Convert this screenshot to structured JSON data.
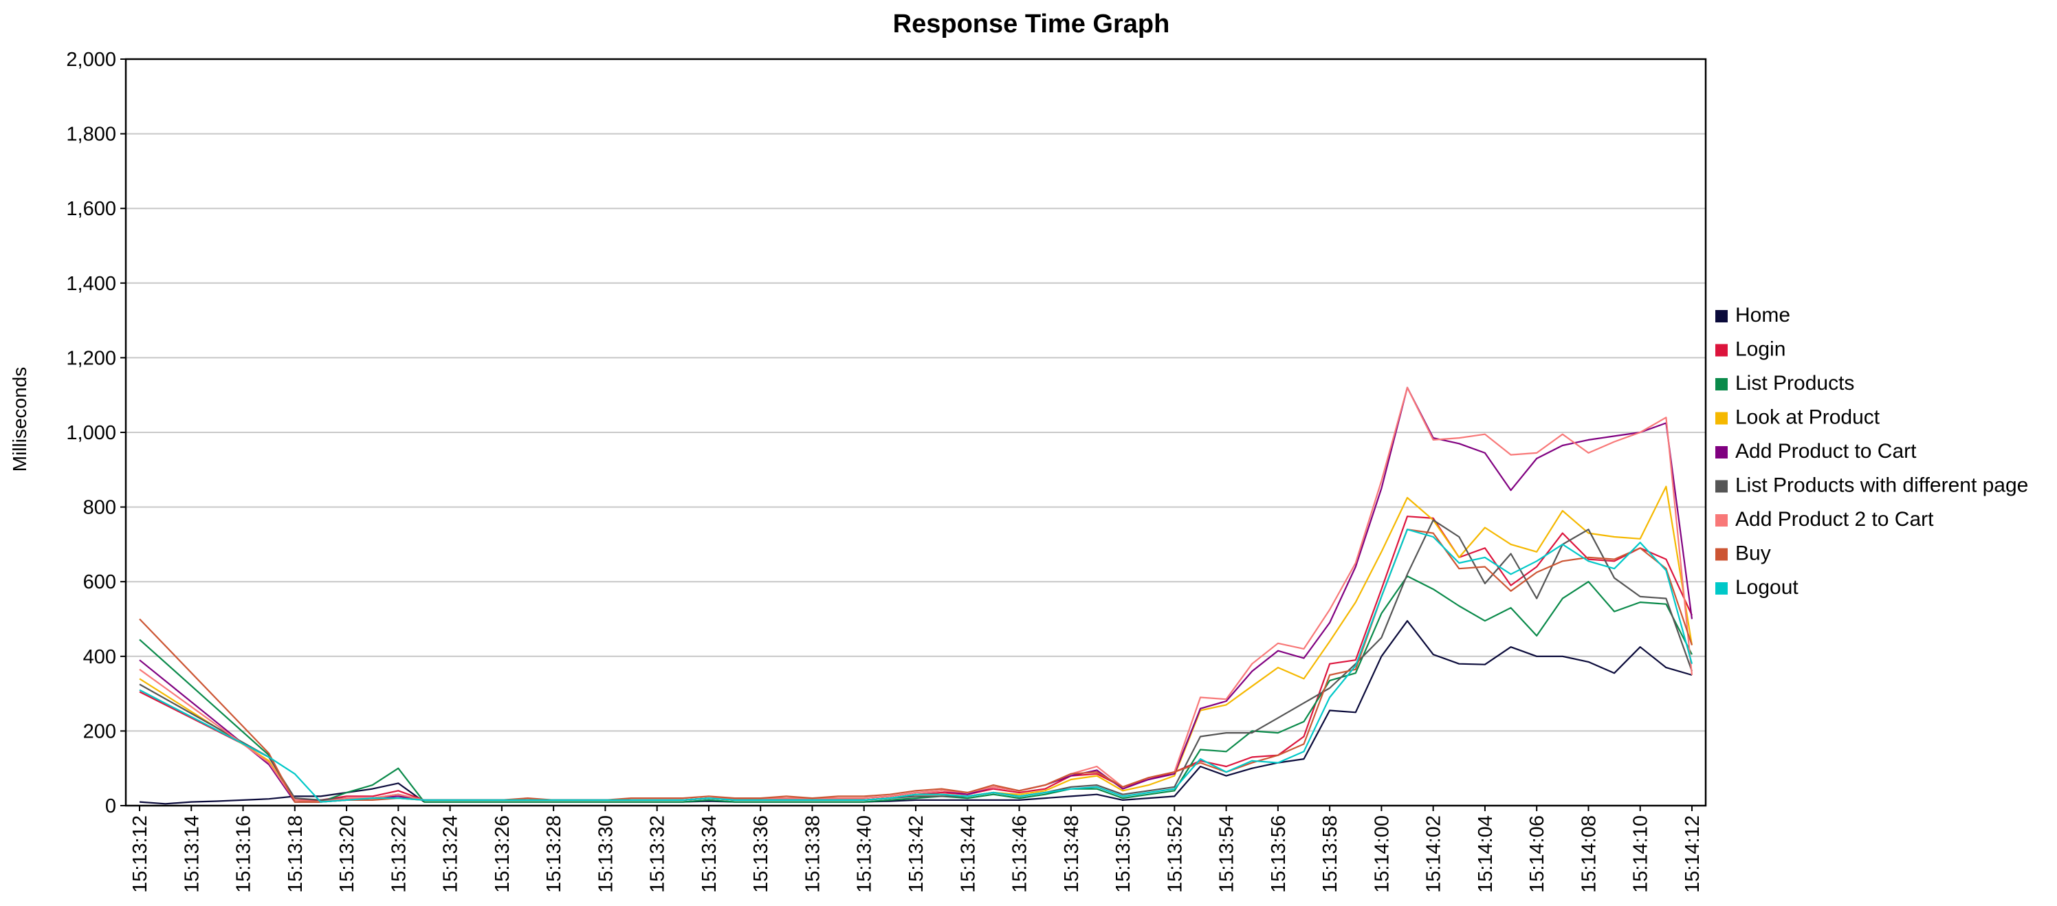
{
  "chart_data": {
    "type": "line",
    "title": "Response Time Graph",
    "xlabel": "",
    "ylabel": "Milliseconds",
    "ylim": [
      0,
      2000
    ],
    "ytick_labels": [
      "0",
      "200",
      "400",
      "600",
      "800",
      "1,000",
      "1,200",
      "1,400",
      "1,600",
      "1,800",
      "2,000"
    ],
    "ytick_values": [
      0,
      200,
      400,
      600,
      800,
      1000,
      1200,
      1400,
      1600,
      1800,
      2000
    ],
    "grid": true,
    "legend_position": "right",
    "x": [
      "15:13:12",
      "15:13:13",
      "15:13:14",
      "15:13:15",
      "15:13:16",
      "15:13:17",
      "15:13:18",
      "15:13:19",
      "15:13:20",
      "15:13:21",
      "15:13:22",
      "15:13:23",
      "15:13:24",
      "15:13:25",
      "15:13:26",
      "15:13:27",
      "15:13:28",
      "15:13:29",
      "15:13:30",
      "15:13:31",
      "15:13:32",
      "15:13:33",
      "15:13:34",
      "15:13:35",
      "15:13:36",
      "15:13:37",
      "15:13:38",
      "15:13:39",
      "15:13:40",
      "15:13:41",
      "15:13:42",
      "15:13:43",
      "15:13:44",
      "15:13:45",
      "15:13:46",
      "15:13:47",
      "15:13:48",
      "15:13:49",
      "15:13:50",
      "15:13:51",
      "15:13:52",
      "15:13:53",
      "15:13:54",
      "15:13:55",
      "15:13:56",
      "15:13:57",
      "15:13:58",
      "15:13:59",
      "15:14:00",
      "15:14:01",
      "15:14:02",
      "15:14:03",
      "15:14:04",
      "15:14:05",
      "15:14:06",
      "15:14:07",
      "15:14:08",
      "15:14:09",
      "15:14:10",
      "15:14:11",
      "15:14:12"
    ],
    "xtick_labels": [
      "15:13:12",
      "15:13:14",
      "15:13:16",
      "15:13:18",
      "15:13:20",
      "15:13:22",
      "15:13:24",
      "15:13:26",
      "15:13:28",
      "15:13:30",
      "15:13:32",
      "15:13:34",
      "15:13:36",
      "15:13:38",
      "15:13:40",
      "15:13:42",
      "15:13:44",
      "15:13:46",
      "15:13:48",
      "15:13:50",
      "15:13:52",
      "15:13:54",
      "15:13:56",
      "15:13:58",
      "15:14:00",
      "15:14:02",
      "15:14:04",
      "15:14:06",
      "15:14:08",
      "15:14:10",
      "15:14:12"
    ],
    "series": [
      {
        "name": "Home",
        "color": "#0a0a3a",
        "values": [
          10,
          5,
          10,
          12,
          15,
          18,
          25,
          25,
          35,
          45,
          60,
          10,
          10,
          10,
          10,
          10,
          10,
          10,
          10,
          10,
          10,
          10,
          12,
          10,
          10,
          10,
          10,
          10,
          10,
          12,
          15,
          15,
          15,
          15,
          15,
          20,
          25,
          30,
          15,
          20,
          25,
          105,
          80,
          100,
          115,
          125,
          255,
          250,
          400,
          495,
          405,
          380,
          378,
          425,
          400,
          400,
          385,
          355,
          425,
          370,
          350
        ]
      },
      {
        "name": "Login",
        "color": "#dc143c",
        "values": [
          305,
          null,
          null,
          null,
          null,
          130,
          15,
          15,
          25,
          25,
          40,
          15,
          15,
          15,
          15,
          15,
          15,
          15,
          15,
          15,
          15,
          15,
          20,
          15,
          15,
          15,
          15,
          15,
          15,
          20,
          30,
          35,
          30,
          45,
          35,
          45,
          80,
          85,
          50,
          70,
          90,
          120,
          105,
          130,
          135,
          185,
          380,
          390,
          580,
          775,
          770,
          665,
          690,
          590,
          640,
          730,
          660,
          655,
          690,
          660,
          510
        ]
      },
      {
        "name": "List Products",
        "color": "#0a8a4a",
        "values": [
          445,
          null,
          null,
          null,
          null,
          135,
          10,
          10,
          35,
          55,
          100,
          10,
          10,
          10,
          10,
          10,
          10,
          10,
          10,
          10,
          10,
          10,
          15,
          10,
          10,
          10,
          10,
          10,
          10,
          15,
          20,
          25,
          20,
          30,
          20,
          30,
          45,
          45,
          20,
          30,
          40,
          150,
          145,
          200,
          195,
          225,
          335,
          355,
          515,
          615,
          580,
          535,
          495,
          530,
          455,
          555,
          600,
          520,
          545,
          540,
          405
        ]
      },
      {
        "name": "Look at Product",
        "color": "#f5b800",
        "values": [
          340,
          null,
          null,
          null,
          null,
          120,
          10,
          10,
          15,
          20,
          20,
          15,
          15,
          15,
          15,
          15,
          15,
          15,
          15,
          15,
          15,
          15,
          20,
          15,
          15,
          15,
          15,
          15,
          15,
          20,
          30,
          30,
          25,
          35,
          30,
          40,
          70,
          80,
          40,
          55,
          80,
          255,
          270,
          320,
          370,
          340,
          440,
          545,
          680,
          825,
          765,
          665,
          745,
          700,
          680,
          790,
          730,
          720,
          715,
          855,
          430
        ]
      },
      {
        "name": "Add Product to Cart",
        "color": "#800080",
        "values": [
          390,
          null,
          null,
          null,
          null,
          110,
          10,
          10,
          15,
          20,
          25,
          15,
          15,
          15,
          15,
          15,
          15,
          15,
          15,
          15,
          15,
          15,
          20,
          20,
          20,
          20,
          20,
          20,
          20,
          25,
          35,
          40,
          30,
          50,
          40,
          55,
          80,
          95,
          45,
          70,
          85,
          260,
          280,
          360,
          415,
          395,
          490,
          640,
          850,
          1120,
          985,
          970,
          945,
          845,
          930,
          965,
          980,
          990,
          1000,
          1025,
          500
        ]
      },
      {
        "name": "List Products with different page",
        "color": "#555555",
        "values": [
          325,
          null,
          null,
          null,
          null,
          130,
          20,
          15,
          20,
          20,
          30,
          15,
          15,
          15,
          15,
          15,
          15,
          15,
          15,
          15,
          15,
          15,
          20,
          15,
          15,
          15,
          15,
          15,
          15,
          20,
          25,
          25,
          25,
          35,
          25,
          35,
          50,
          55,
          30,
          40,
          50,
          185,
          195,
          195,
          235,
          275,
          315,
          380,
          450,
          620,
          765,
          720,
          595,
          675,
          555,
          700,
          740,
          610,
          560,
          555,
          360
        ]
      },
      {
        "name": "Add Product 2 to Cart",
        "color": "#f87878",
        "values": [
          365,
          null,
          null,
          null,
          null,
          115,
          15,
          10,
          20,
          20,
          30,
          15,
          15,
          15,
          15,
          15,
          15,
          15,
          15,
          15,
          15,
          15,
          20,
          20,
          20,
          20,
          20,
          20,
          20,
          25,
          35,
          40,
          35,
          50,
          40,
          55,
          85,
          105,
          50,
          75,
          90,
          290,
          285,
          380,
          435,
          420,
          525,
          650,
          870,
          1120,
          980,
          985,
          995,
          940,
          945,
          995,
          945,
          975,
          1000,
          1040,
          350
        ]
      },
      {
        "name": "Buy",
        "color": "#cc5533",
        "values": [
          500,
          null,
          null,
          null,
          null,
          140,
          10,
          10,
          15,
          15,
          20,
          15,
          15,
          15,
          15,
          20,
          15,
          15,
          15,
          20,
          20,
          20,
          25,
          20,
          20,
          25,
          20,
          25,
          25,
          30,
          40,
          45,
          35,
          55,
          40,
          55,
          85,
          90,
          50,
          75,
          90,
          115,
          90,
          115,
          135,
          165,
          350,
          365,
          560,
          740,
          730,
          635,
          640,
          575,
          625,
          655,
          665,
          660,
          690,
          635,
          430
        ]
      },
      {
        "name": "Logout",
        "color": "#00c8c8",
        "values": [
          310,
          null,
          null,
          null,
          null,
          130,
          85,
          10,
          15,
          20,
          20,
          15,
          15,
          15,
          15,
          15,
          15,
          15,
          15,
          15,
          15,
          15,
          20,
          15,
          15,
          15,
          15,
          15,
          15,
          20,
          30,
          30,
          25,
          35,
          25,
          35,
          45,
          50,
          25,
          35,
          45,
          125,
          90,
          120,
          115,
          145,
          290,
          375,
          560,
          740,
          720,
          650,
          665,
          620,
          655,
          700,
          655,
          635,
          705,
          630,
          380
        ]
      }
    ]
  }
}
